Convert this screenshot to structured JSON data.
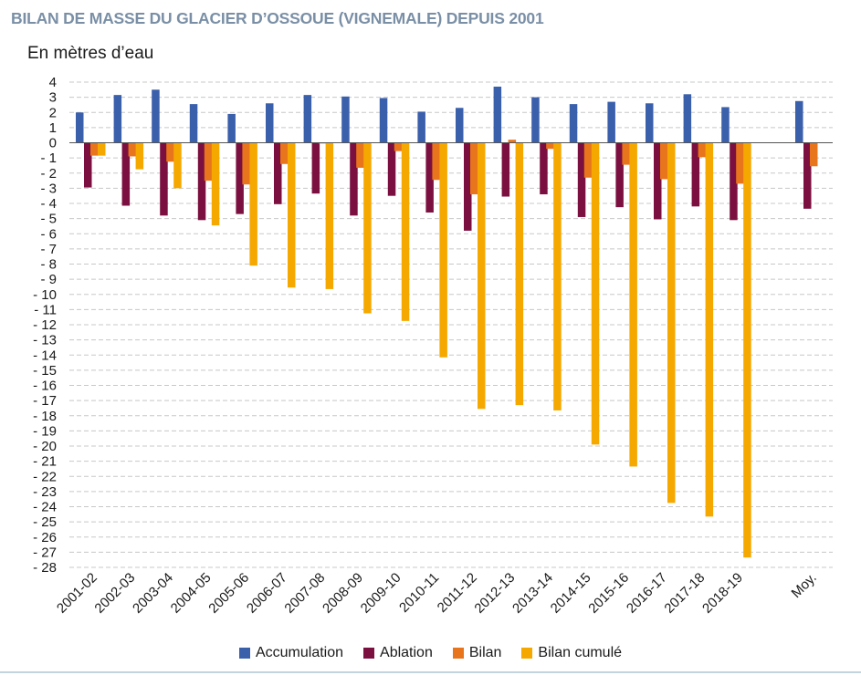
{
  "title": "BILAN DE MASSE DU GLACIER D’OSSOUE (VIGNEMALE) DEPUIS 2001",
  "unit_label": "En mètres d’eau",
  "chart_data": {
    "type": "bar",
    "title": "BILAN DE MASSE DU GLACIER D’OSSOUE (VIGNEMALE) DEPUIS 2001",
    "ylabel": "En mètres d’eau",
    "xlabel": "",
    "ylim": [
      -28,
      4
    ],
    "grid": true,
    "legend_position": "bottom",
    "categories": [
      "2001-02",
      "2002-03",
      "2003-04",
      "2004-05",
      "2005-06",
      "2006-07",
      "2007-08",
      "2008-09",
      "2009-10",
      "2010-11",
      "2011-12",
      "2012-13",
      "2013-14",
      "2014-15",
      "2015-16",
      "2016-17",
      "2017-18",
      "2018-19",
      "Moy."
    ],
    "yticks": [
      "4",
      "3",
      "2",
      "1",
      "0",
      "- 1",
      "- 2",
      "- 3",
      "- 4",
      "- 5",
      "- 6",
      "- 7",
      "- 8",
      "- 9",
      "- 10",
      "- 11",
      "- 12",
      "- 13",
      "- 14",
      "- 15",
      "- 16",
      "- 17",
      "- 18",
      "- 19",
      "- 20",
      "- 21",
      "- 22",
      "- 23",
      "- 24",
      "- 25",
      "- 26",
      "- 27",
      "- 28"
    ],
    "series": [
      {
        "name": "Accumulation",
        "color": "#3a5fab",
        "values": [
          2.0,
          3.15,
          3.5,
          2.55,
          1.9,
          2.6,
          3.15,
          3.05,
          2.95,
          2.05,
          2.3,
          3.7,
          3.0,
          2.55,
          2.7,
          2.6,
          3.2,
          2.35,
          2.75
        ]
      },
      {
        "name": "Ablation",
        "color": "#7b1040",
        "values": [
          -2.95,
          -4.15,
          -4.8,
          -5.1,
          -4.7,
          -4.05,
          -3.35,
          -4.8,
          -3.5,
          -4.6,
          -5.8,
          -3.55,
          -3.4,
          -4.9,
          -4.25,
          -5.05,
          -4.2,
          -5.1,
          -4.35
        ]
      },
      {
        "name": "Bilan",
        "color": "#e8741c",
        "values": [
          -0.85,
          -0.9,
          -1.25,
          -2.5,
          -2.75,
          -1.4,
          -0.05,
          -1.65,
          -0.55,
          -2.45,
          -3.4,
          0.2,
          -0.4,
          -2.3,
          -1.45,
          -2.4,
          -0.95,
          -2.7,
          -1.55
        ]
      },
      {
        "name": "Bilan cumulé",
        "color": "#f5a800",
        "values": [
          -0.85,
          -1.75,
          -3.0,
          -5.45,
          -8.1,
          -9.55,
          -9.65,
          -11.25,
          -11.75,
          -14.15,
          -17.55,
          -17.3,
          -17.65,
          -19.9,
          -21.35,
          -23.75,
          -24.65,
          -27.35,
          null
        ]
      }
    ]
  }
}
